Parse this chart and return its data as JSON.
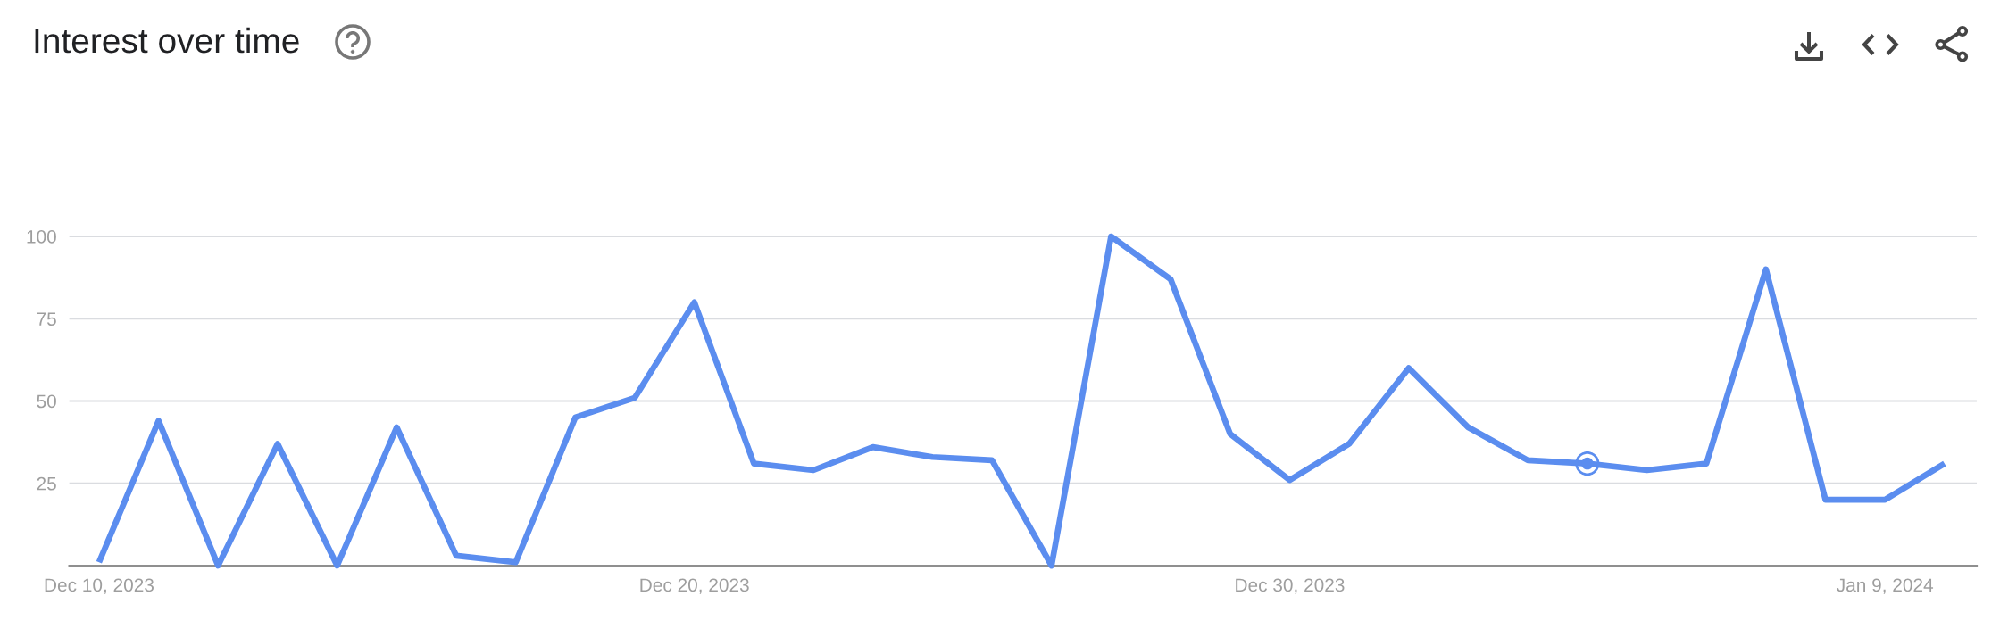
{
  "chart_data": {
    "type": "line",
    "title": "Interest over time",
    "x": [
      "2023-12-10",
      "2023-12-11",
      "2023-12-12",
      "2023-12-13",
      "2023-12-14",
      "2023-12-15",
      "2023-12-16",
      "2023-12-17",
      "2023-12-18",
      "2023-12-19",
      "2023-12-20",
      "2023-12-21",
      "2023-12-22",
      "2023-12-23",
      "2023-12-24",
      "2023-12-25",
      "2023-12-26",
      "2023-12-27",
      "2023-12-28",
      "2023-12-29",
      "2023-12-30",
      "2023-12-31",
      "2024-01-01",
      "2024-01-02",
      "2024-01-03",
      "2024-01-04",
      "2024-01-05",
      "2024-01-06",
      "2024-01-07",
      "2024-01-08",
      "2024-01-09",
      "2024-01-10"
    ],
    "series": [
      {
        "color": "#5b8def",
        "values": [
          1,
          44,
          0,
          37,
          0,
          42,
          3,
          1,
          45,
          51,
          80,
          31,
          29,
          36,
          33,
          32,
          0,
          100,
          87,
          40,
          26,
          37,
          60,
          42,
          32,
          31,
          29,
          31,
          90,
          20,
          20,
          31
        ]
      },
      {
        "type": "scatter",
        "x": [
          "2024-01-04"
        ],
        "values": [
          31
        ],
        "color": "#5b8def",
        "marker": "circle"
      }
    ],
    "xlim": [
      "2023-12-09T12:00",
      "2024-01-10T13:00"
    ],
    "xticks": [
      {
        "value": "2023-12-10",
        "label": "Dec 10, 2023"
      },
      {
        "value": "2023-12-20",
        "label": "Dec 20, 2023"
      },
      {
        "value": "2023-12-30",
        "label": "Dec 30, 2023"
      },
      {
        "value": "2024-01-09",
        "label": "Jan 9, 2024"
      }
    ],
    "ylim": [
      0,
      100
    ],
    "yticks": [
      25,
      50,
      75,
      100
    ],
    "grid": "y",
    "marker": "none",
    "line_style": "solid"
  }
}
